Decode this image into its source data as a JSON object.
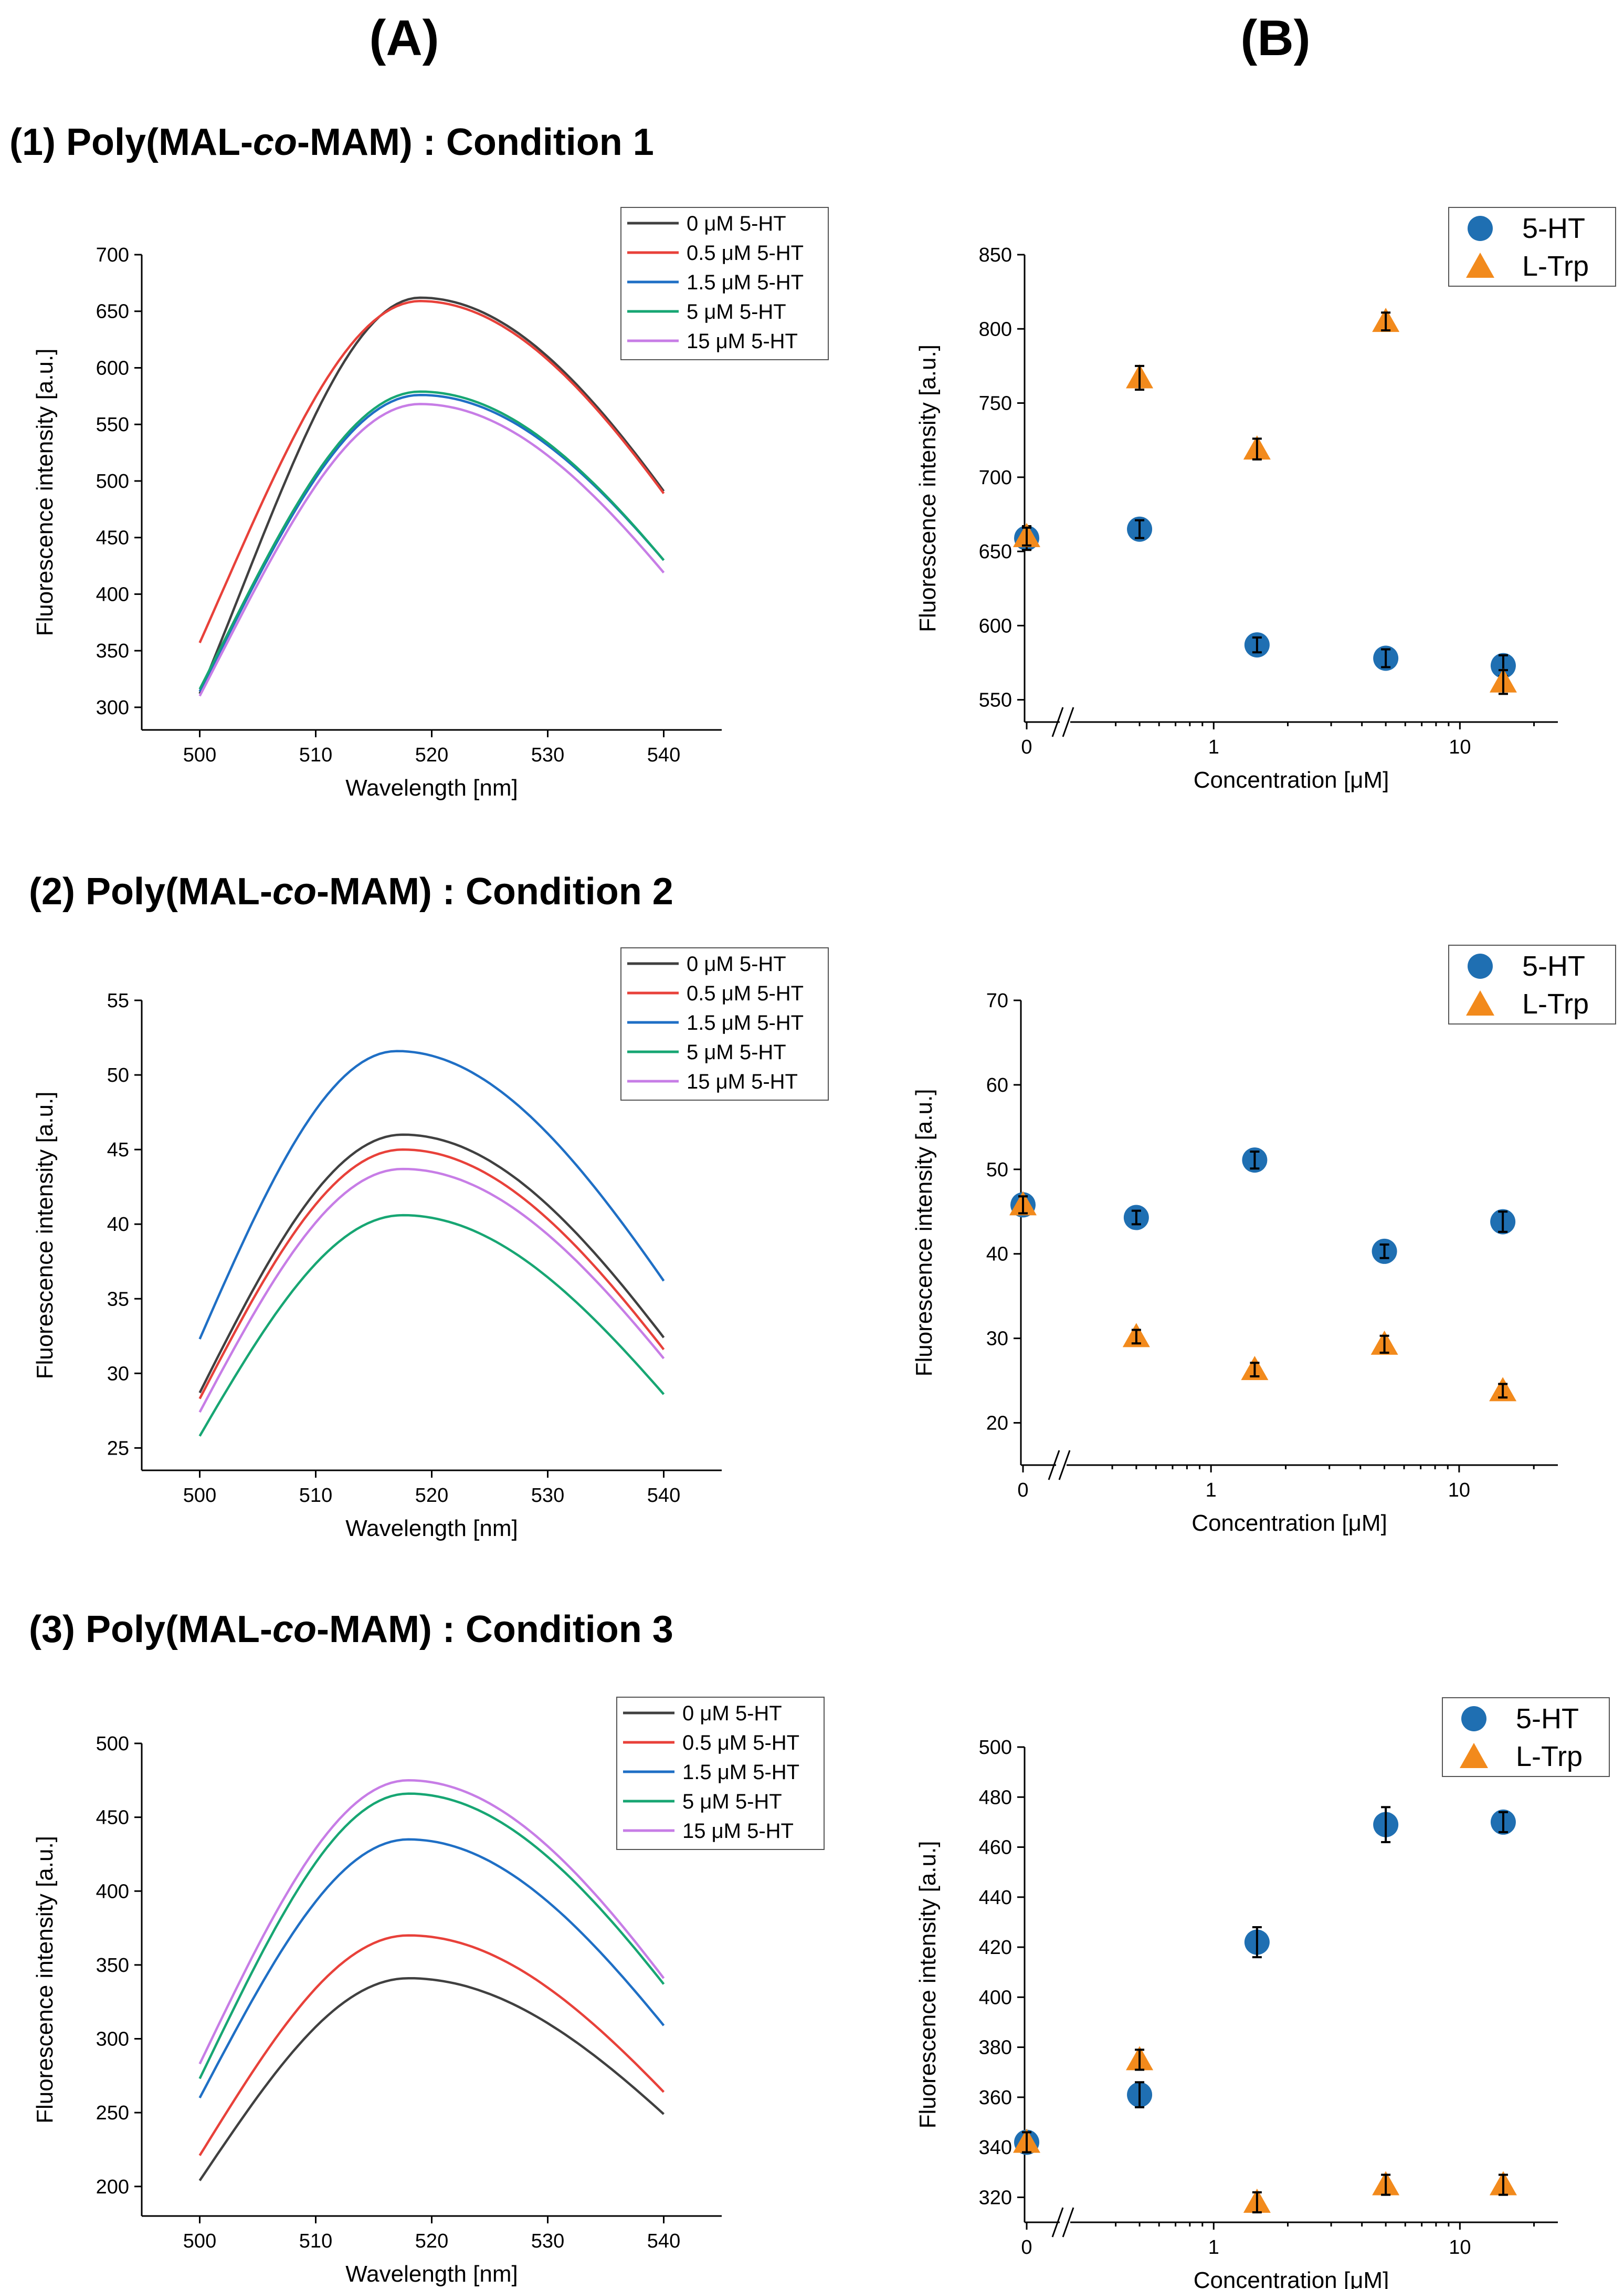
{
  "headers": {
    "a": "(A)",
    "b": "(B)"
  },
  "rows": [
    {
      "title_pre": "(1) Poly(MAL-",
      "title_ital": "co",
      "title_post": "-MAM) : Condition 1"
    },
    {
      "title_pre": "(2) Poly(MAL-",
      "title_ital": "co",
      "title_post": "-MAM) : Condition 2"
    },
    {
      "title_pre": "(3) Poly(MAL-",
      "title_ital": "co",
      "title_post": "-MAM) : Condition 3"
    }
  ],
  "chart_data": [
    {
      "id": "A1",
      "type": "line",
      "xlabel": "Wavelength [nm]",
      "ylabel": "Fluorescence intensity [a.u.]",
      "xlim": [
        495,
        545
      ],
      "ylim": [
        280,
        700
      ],
      "xticks": [
        500,
        510,
        520,
        530,
        540
      ],
      "yticks": [
        300,
        350,
        400,
        450,
        500,
        550,
        600,
        650,
        700
      ],
      "series": [
        {
          "name": "0 μM 5-HT",
          "color": "#404040",
          "peak": 662,
          "peak_x": 519,
          "start": 312,
          "end": 491
        },
        {
          "name": "0.5 μM 5-HT",
          "color": "#e8413a",
          "peak": 659,
          "peak_x": 519,
          "start": 357,
          "end": 489
        },
        {
          "name": "1.5 μM 5-HT",
          "color": "#1f6fc5",
          "peak": 576,
          "peak_x": 519,
          "start": 314,
          "end": 430
        },
        {
          "name": "5 μM 5-HT",
          "color": "#17a673",
          "peak": 579,
          "peak_x": 519,
          "start": 316,
          "end": 430
        },
        {
          "name": "15 μM 5-HT",
          "color": "#c77de6",
          "peak": 568,
          "peak_x": 519,
          "start": 310,
          "end": 419
        }
      ]
    },
    {
      "id": "B1",
      "type": "scatter",
      "xlabel": "Concentration [μM]",
      "ylabel": "Fluorescence intensity [a.u.]",
      "ylim": [
        535,
        850
      ],
      "yticks": [
        550,
        600,
        650,
        700,
        750,
        800,
        850
      ],
      "xtick_labels": [
        "0",
        "1",
        "10"
      ],
      "x": [
        0,
        0.5,
        1.5,
        5,
        15
      ],
      "series": [
        {
          "name": "5-HT",
          "marker": "circle",
          "color": "#1f6fb2",
          "values": [
            659,
            665,
            587,
            578,
            573
          ],
          "errors": [
            8,
            6,
            5,
            6,
            7
          ]
        },
        {
          "name": "L-Trp",
          "marker": "triangle",
          "color": "#f28a1c",
          "values": [
            660,
            767,
            719,
            805,
            562
          ],
          "errors": [
            6,
            8,
            7,
            6,
            8
          ]
        }
      ]
    },
    {
      "id": "A2",
      "type": "line",
      "xlabel": "Wavelength [nm]",
      "ylabel": "Fluorescence intensity [a.u.]",
      "xlim": [
        495,
        545
      ],
      "ylim": [
        23.5,
        55
      ],
      "xticks": [
        500,
        510,
        520,
        530,
        540
      ],
      "yticks": [
        25,
        30,
        35,
        40,
        45,
        50,
        55
      ],
      "series": [
        {
          "name": "0 μM 5-HT",
          "color": "#404040",
          "peak": 46.0,
          "peak_x": 517.5,
          "start": 28.7,
          "end": 32.4
        },
        {
          "name": "0.5 μM 5-HT",
          "color": "#e8413a",
          "peak": 45.0,
          "peak_x": 517.5,
          "start": 28.3,
          "end": 31.6
        },
        {
          "name": "1.5 μM 5-HT",
          "color": "#1f6fc5",
          "peak": 51.6,
          "peak_x": 517.0,
          "start": 32.3,
          "end": 36.2
        },
        {
          "name": "5 μM 5-HT",
          "color": "#17a673",
          "peak": 40.6,
          "peak_x": 517.5,
          "start": 25.8,
          "end": 28.6
        },
        {
          "name": "15 μM 5-HT",
          "color": "#c77de6",
          "peak": 43.7,
          "peak_x": 517.5,
          "start": 27.4,
          "end": 31.0
        }
      ]
    },
    {
      "id": "B2",
      "type": "scatter",
      "xlabel": "Concentration [μM]",
      "ylabel": "Fluorescence intensity [a.u.]",
      "ylim": [
        15,
        70
      ],
      "yticks": [
        20,
        30,
        40,
        50,
        60,
        70
      ],
      "xtick_labels": [
        "0",
        "1",
        "10"
      ],
      "x": [
        0,
        0.5,
        1.5,
        5,
        15
      ],
      "series": [
        {
          "name": "5-HT",
          "marker": "circle",
          "color": "#1f6fb2",
          "values": [
            45.8,
            44.3,
            51.1,
            40.3,
            43.8
          ],
          "errors": [
            1.0,
            0.8,
            1.0,
            0.8,
            1.2
          ]
        },
        {
          "name": "L-Trp",
          "marker": "triangle",
          "color": "#f28a1c",
          "values": [
            45.8,
            30.2,
            26.3,
            29.3,
            23.8
          ],
          "errors": [
            1.0,
            0.8,
            0.8,
            1.0,
            0.8
          ]
        }
      ]
    },
    {
      "id": "A3",
      "type": "line",
      "xlabel": "Wavelength [nm]",
      "ylabel": "Fluorescence intensity [a.u.]",
      "xlim": [
        495,
        545
      ],
      "ylim": [
        180,
        500
      ],
      "xticks": [
        500,
        510,
        520,
        530,
        540
      ],
      "yticks": [
        200,
        250,
        300,
        350,
        400,
        450,
        500
      ],
      "series": [
        {
          "name": "0 μM 5-HT",
          "color": "#404040",
          "peak": 341,
          "peak_x": 518,
          "start": 204,
          "end": 249
        },
        {
          "name": "0.5 μM 5-HT",
          "color": "#e8413a",
          "peak": 370,
          "peak_x": 518,
          "start": 221,
          "end": 264
        },
        {
          "name": "1.5 μM 5-HT",
          "color": "#1f6fc5",
          "peak": 435,
          "peak_x": 518,
          "start": 260,
          "end": 309
        },
        {
          "name": "5 μM 5-HT",
          "color": "#17a673",
          "peak": 466,
          "peak_x": 518,
          "start": 273,
          "end": 337
        },
        {
          "name": "15 μM 5-HT",
          "color": "#c77de6",
          "peak": 475,
          "peak_x": 518,
          "start": 283,
          "end": 341
        }
      ]
    },
    {
      "id": "B3",
      "type": "scatter",
      "xlabel": "Concentration [μM]",
      "ylabel": "Fluorescence intensity [a.u.]",
      "ylim": [
        310,
        500
      ],
      "yticks": [
        320,
        340,
        360,
        380,
        400,
        420,
        440,
        460,
        480,
        500
      ],
      "xtick_labels": [
        "0",
        "1",
        "10"
      ],
      "x": [
        0,
        0.5,
        1.5,
        5,
        15
      ],
      "series": [
        {
          "name": "5-HT",
          "marker": "circle",
          "color": "#1f6fb2",
          "values": [
            342,
            361,
            422,
            469,
            470
          ],
          "errors": [
            4,
            5,
            6,
            7,
            4
          ]
        },
        {
          "name": "L-Trp",
          "marker": "triangle",
          "color": "#f28a1c",
          "values": [
            342,
            375,
            318,
            325,
            325
          ],
          "errors": [
            4,
            4,
            4,
            4,
            4
          ]
        }
      ]
    }
  ]
}
